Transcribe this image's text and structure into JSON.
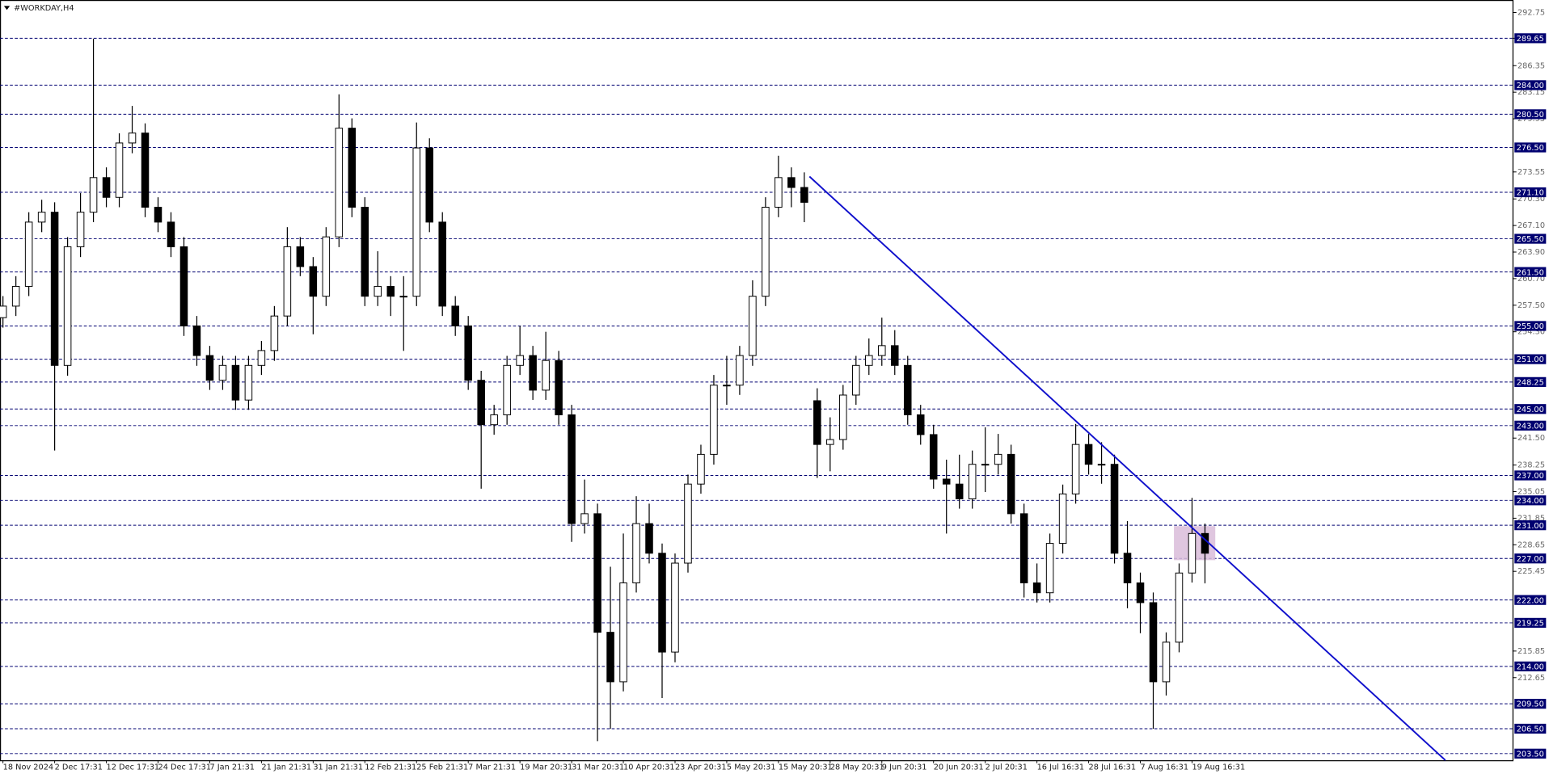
{
  "chart_data": {
    "type": "candlestick",
    "title": "#WORKDAY,H4",
    "categories": [
      "18 Nov 2024",
      null,
      null,
      null,
      "2 Dec 17:31",
      null,
      null,
      null,
      "12 Dec 17:31",
      null,
      null,
      null,
      "24 Dec 17:31",
      null,
      null,
      null,
      "7 Jan 21:31",
      null,
      null,
      null,
      "21 Jan 21:31",
      null,
      null,
      null,
      "31 Jan 21:31",
      null,
      null,
      null,
      "12 Feb 21:31",
      null,
      null,
      null,
      "25 Feb 21:31",
      null,
      null,
      null,
      "7 Mar 21:31",
      null,
      null,
      null,
      "19 Mar 20:31",
      null,
      null,
      null,
      "31 Mar 20:31",
      null,
      null,
      null,
      "10 Apr 20:31",
      null,
      null,
      null,
      "23 Apr 20:31",
      null,
      null,
      null,
      "5 May 20:31",
      null,
      null,
      null,
      "15 May 20:31",
      null,
      null,
      null,
      "28 May 20:31",
      null,
      null,
      null,
      "9 Jun 20:31",
      null,
      null,
      null,
      "20 Jun 20:31",
      null,
      null,
      null,
      "2 Jul 20:31",
      null,
      null,
      null,
      "16 Jul 16:31",
      null,
      null,
      null,
      "28 Jul 16:31",
      null,
      null,
      null,
      "7 Aug 16:31",
      null,
      null,
      null,
      "19 Aug 16:31",
      null
    ],
    "open": [
      256.0,
      257.39,
      259.77,
      267.51,
      268.7,
      250.25,
      264.54,
      268.7,
      272.87,
      270.49,
      277.04,
      278.23,
      269.3,
      267.51,
      264.54,
      255.01,
      251.44,
      248.46,
      250.25,
      246.08,
      250.25,
      252.04,
      256.2,
      264.54,
      262.15,
      258.58,
      265.73,
      278.82,
      269.3,
      258.58,
      259.77,
      258.58,
      258.58,
      276.44,
      267.51,
      257.39,
      255.01,
      248.46,
      243.11,
      244.3,
      250.25,
      251.44,
      247.27,
      250.84,
      244.3,
      231.2,
      232.39,
      218.11,
      212.15,
      224.06,
      231.2,
      227.63,
      215.73,
      226.44,
      235.96,
      239.54,
      247.87,
      247.87,
      251.44,
      258.58,
      269.3,
      272.87,
      271.68,
      246.0,
      240.73,
      241.32,
      246.68,
      250.25,
      251.44,
      252.63,
      250.25,
      244.3,
      241.92,
      236.56,
      235.96,
      234.18,
      238.34,
      238.34,
      239.54,
      232.39,
      224.06,
      222.87,
      228.82,
      234.77,
      240.73,
      238.34,
      238.34,
      227.63,
      224.06,
      221.68,
      212.15,
      216.92,
      225.25,
      230.01
    ],
    "high": [
      258.6,
      261.0,
      268.7,
      270.2,
      269.9,
      265.7,
      271.0,
      289.6,
      274.1,
      278.2,
      281.5,
      279.4,
      270.5,
      268.7,
      265.7,
      256.2,
      252.6,
      251.4,
      251.4,
      251.4,
      253.2,
      257.4,
      266.9,
      265.7,
      263.3,
      266.9,
      282.9,
      280.0,
      270.5,
      264.0,
      261.0,
      261.0,
      279.5,
      277.6,
      268.7,
      258.6,
      256.2,
      249.6,
      245.5,
      251.4,
      255.0,
      252.6,
      254.3,
      252.0,
      245.5,
      236.5,
      233.6,
      226.0,
      230.0,
      234.5,
      233.6,
      228.8,
      227.6,
      237.1,
      240.7,
      249.1,
      251.4,
      252.6,
      260.5,
      270.5,
      275.5,
      274.1,
      273.5,
      247.5,
      244.0,
      247.9,
      251.4,
      253.5,
      256.0,
      254.5,
      251.4,
      245.5,
      243.1,
      238.9,
      239.5,
      240.0,
      242.8,
      242.0,
      240.7,
      233.6,
      226.4,
      230.0,
      235.9,
      243.2,
      242.0,
      241.0,
      239.5,
      231.5,
      225.3,
      222.9,
      218.1,
      226.4,
      234.3,
      231.2
    ],
    "low": [
      254.8,
      256.2,
      258.6,
      266.3,
      240.0,
      249.0,
      263.3,
      267.5,
      269.3,
      269.3,
      275.8,
      268.1,
      266.3,
      263.3,
      253.8,
      250.2,
      247.3,
      247.3,
      244.9,
      244.9,
      249.1,
      250.8,
      255.0,
      261.0,
      254.0,
      257.4,
      264.5,
      268.1,
      257.4,
      257.4,
      256.2,
      252.0,
      257.4,
      266.3,
      256.2,
      253.8,
      247.3,
      235.4,
      241.9,
      243.1,
      249.1,
      246.1,
      246.1,
      243.1,
      229.0,
      230.0,
      205.0,
      206.5,
      211.0,
      222.9,
      226.4,
      210.2,
      214.5,
      225.3,
      234.8,
      238.3,
      245.5,
      246.7,
      250.2,
      257.4,
      268.1,
      269.3,
      267.5,
      236.7,
      237.5,
      240.1,
      245.5,
      249.1,
      250.2,
      249.1,
      243.1,
      240.7,
      235.4,
      230.0,
      233.0,
      233.0,
      235.0,
      237.1,
      231.2,
      222.3,
      221.7,
      221.7,
      227.6,
      233.6,
      237.1,
      236.0,
      226.4,
      221.0,
      218.0,
      206.5,
      210.5,
      215.7,
      224.1,
      224.0
    ],
    "close": [
      257.39,
      259.77,
      267.51,
      268.7,
      250.25,
      264.54,
      268.7,
      272.87,
      270.49,
      277.04,
      278.23,
      269.3,
      267.51,
      264.54,
      255.01,
      251.44,
      248.46,
      250.25,
      246.08,
      250.25,
      252.04,
      256.2,
      264.54,
      262.15,
      258.58,
      265.73,
      278.82,
      269.3,
      258.58,
      259.77,
      258.58,
      258.58,
      276.44,
      267.51,
      257.39,
      255.01,
      248.46,
      243.11,
      244.3,
      250.25,
      251.44,
      247.27,
      250.84,
      244.3,
      231.2,
      232.39,
      218.11,
      212.15,
      224.06,
      231.2,
      227.63,
      215.73,
      226.44,
      235.96,
      239.54,
      247.87,
      247.87,
      251.44,
      258.58,
      269.3,
      272.87,
      271.68,
      269.89,
      240.73,
      241.32,
      246.68,
      250.25,
      251.44,
      252.63,
      250.25,
      244.3,
      241.92,
      236.56,
      235.96,
      234.18,
      238.34,
      238.34,
      239.54,
      232.39,
      224.06,
      222.87,
      228.82,
      234.77,
      240.73,
      238.34,
      238.34,
      227.63,
      224.06,
      221.68,
      212.15,
      216.92,
      225.25,
      230.01,
      227.63
    ],
    "up_color": "#ffffff",
    "down_color": "#000000",
    "ylim": [
      202.7,
      293.9
    ],
    "yticks": [
      292.75,
      289.65,
      286.35,
      283.15,
      279.95,
      273.55,
      {
        "value": 270.3,
        "label": "270.30"
      },
      {
        "value": 267.1,
        "label": "267.10"
      },
      {
        "value": 263.9,
        "label": "263.90"
      },
      {
        "value": 260.7,
        "label": "260.70"
      },
      {
        "value": 257.5,
        "label": "257.50"
      },
      {
        "value": 254.3,
        "label": "254.30"
      },
      {
        "value": 241.5,
        "label": "241.50"
      },
      238.25,
      235.05,
      231.85,
      228.65,
      225.45,
      215.85,
      212.65
    ],
    "levels": [
      {
        "value": 289.65,
        "label": "289.65"
      },
      {
        "value": 284,
        "label": "284.00"
      },
      {
        "value": 280.5,
        "label": "280.50"
      },
      {
        "value": 276.5,
        "label": "276.50"
      },
      {
        "value": 271.1,
        "label": "271.10"
      },
      {
        "value": 265.5,
        "label": "265.50"
      },
      {
        "value": 261.5,
        "label": "261.50"
      },
      {
        "value": 255,
        "label": "255.00"
      },
      {
        "value": 251,
        "label": "251.00"
      },
      {
        "value": 248.25,
        "label": "248.25"
      },
      {
        "value": 245,
        "label": "245.00"
      },
      {
        "value": 243,
        "label": "243.00"
      },
      {
        "value": 237,
        "label": "237.00"
      },
      {
        "value": 234,
        "label": "234.00"
      },
      {
        "value": 231,
        "label": "231.00"
      },
      {
        "value": 227,
        "label": "227.00"
      },
      {
        "value": 222,
        "label": "222.00"
      },
      {
        "value": 219.25,
        "label": "219.25"
      },
      {
        "value": 214,
        "label": "214.00"
      },
      {
        "value": 209.5,
        "label": "209.50"
      },
      {
        "value": 206.5,
        "label": "206.50"
      },
      {
        "value": 203.5,
        "label": "203.50"
      }
    ],
    "level_color": "#000070",
    "trendline": {
      "x": [
        62.4,
        111.6
      ],
      "y": [
        273.0,
        202.7
      ],
      "color": "#1010cc"
    },
    "zone": {
      "x": [
        90.6,
        93.8
      ],
      "y": [
        226.8,
        230.9
      ],
      "color": "#d9bcd9"
    }
  }
}
